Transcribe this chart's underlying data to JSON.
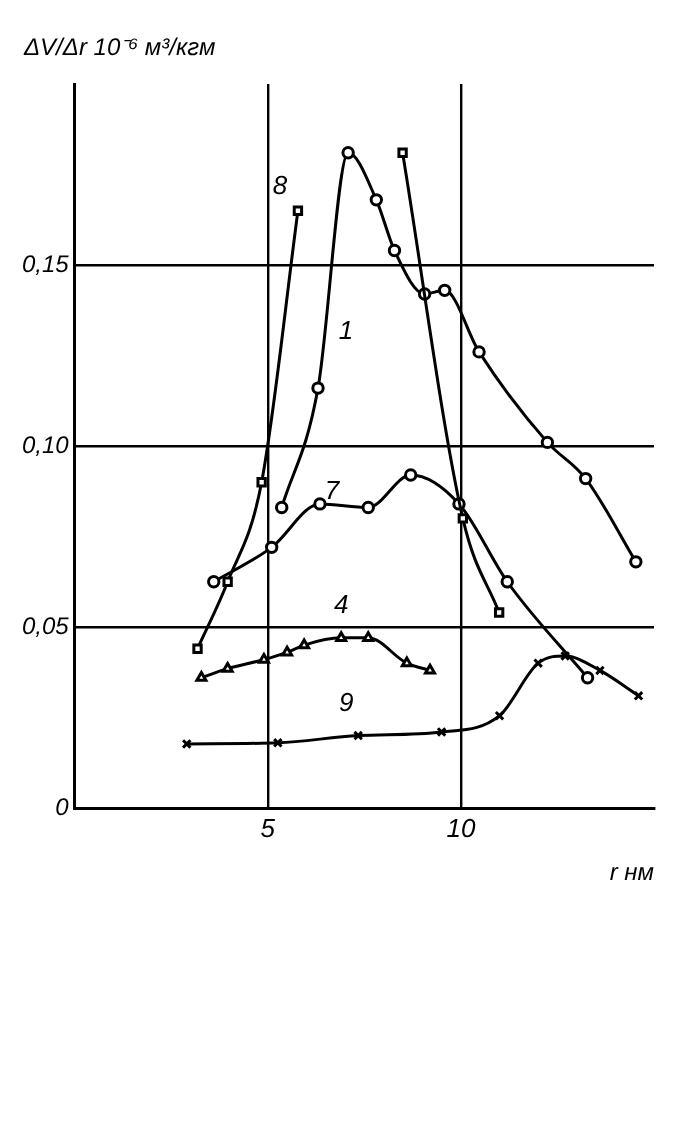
{
  "chart_data": {
    "type": "line",
    "ylabel": "ΔV/Δr 10⁻⁶ м³/кгм",
    "xlabel": "r нм",
    "xlim": [
      0,
      15
    ],
    "xticks": [
      5,
      10
    ],
    "ylim": [
      0,
      0.2
    ],
    "yticks": [
      0,
      {
        "value": 0.05,
        "label": "0,05"
      },
      {
        "value": 0.1,
        "label": "0,10"
      },
      {
        "value": 0.15,
        "label": "0,15"
      }
    ],
    "grid": true,
    "legend": false,
    "line_style": "solid",
    "series": [
      {
        "name": "8",
        "color": "#000000",
        "marker": "square",
        "x": [
          3.18,
          3.96,
          4.84,
          5.78,
          6.72,
          8.02,
          8.49,
          10.05,
          10.99
        ],
        "values": [
          0.044,
          0.0625,
          0.09,
          0.165,
          null,
          null,
          0.181,
          0.08,
          0.054
        ]
      },
      {
        "name": "1",
        "color": "#000000",
        "marker": "circle",
        "x": [
          5.36,
          6.3,
          7.08,
          7.81,
          8.28,
          9.06,
          9.58,
          10.47,
          12.24,
          13.23,
          14.53
        ],
        "values": [
          0.083,
          0.116,
          0.181,
          0.168,
          0.154,
          0.142,
          0.143,
          0.126,
          0.101,
          0.091,
          0.068
        ]
      },
      {
        "name": "7",
        "color": "#000000",
        "marker": "circle",
        "x": [
          3.6,
          5.1,
          6.35,
          7.6,
          8.7,
          9.95,
          11.2,
          13.28
        ],
        "values": [
          0.0625,
          0.072,
          0.084,
          0.083,
          0.092,
          0.084,
          0.0625,
          0.036
        ]
      },
      {
        "name": "4",
        "color": "#000000",
        "marker": "triangle",
        "x": [
          3.28,
          3.96,
          4.9,
          5.5,
          5.94,
          6.9,
          7.6,
          8.6,
          9.2
        ],
        "values": [
          0.036,
          0.0385,
          0.041,
          0.043,
          0.045,
          0.047,
          0.047,
          0.04,
          0.038
        ]
      },
      {
        "name": "9",
        "color": "#000000",
        "marker": "cross",
        "x": [
          2.9,
          5.26,
          7.34,
          9.5,
          11.0,
          12.0,
          12.7,
          13.6,
          14.6
        ],
        "values": [
          0.0177,
          0.018,
          0.02,
          0.021,
          0.0255,
          0.04,
          0.042,
          0.038,
          0.031
        ]
      }
    ]
  }
}
